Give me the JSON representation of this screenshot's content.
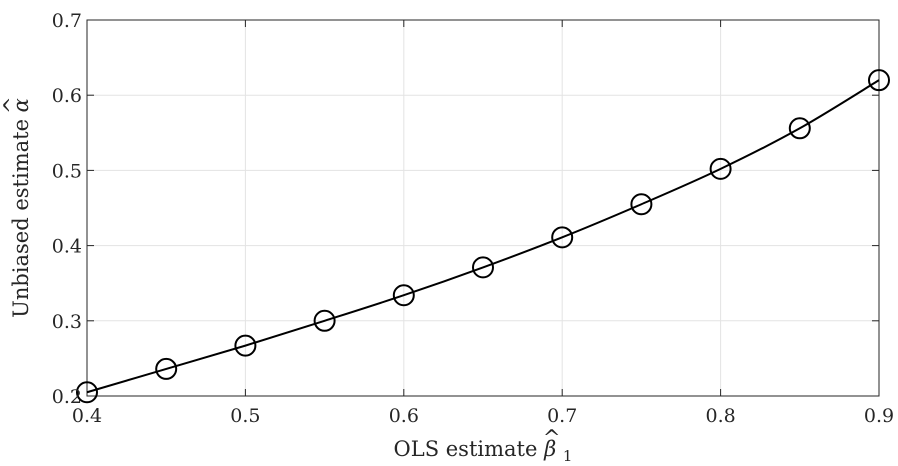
{
  "chart_data": {
    "type": "line",
    "xlabel_text": "OLS estimate ",
    "xlabel_symbol": "β",
    "xlabel_accent": "^",
    "xlabel_subscript": "1",
    "ylabel_text": "Unbiased estimate ",
    "ylabel_symbol": "α",
    "ylabel_accent": "^",
    "xlim": [
      0.4,
      0.9
    ],
    "ylim": [
      0.2,
      0.7
    ],
    "xticks": [
      0.4,
      0.5,
      0.6,
      0.7,
      0.8,
      0.9
    ],
    "yticks": [
      0.2,
      0.3,
      0.4,
      0.5,
      0.6,
      0.7
    ],
    "xtick_labels": [
      "0.4",
      "0.5",
      "0.6",
      "0.7",
      "0.8",
      "0.9"
    ],
    "ytick_labels": [
      "0.2",
      "0.3",
      "0.4",
      "0.5",
      "0.6",
      "0.7"
    ],
    "grid": true,
    "series": [
      {
        "x": [
          0.4,
          0.45,
          0.5,
          0.55,
          0.6,
          0.65,
          0.7,
          0.75,
          0.8,
          0.85,
          0.9
        ],
        "y": [
          0.205,
          0.236,
          0.267,
          0.3,
          0.334,
          0.371,
          0.411,
          0.455,
          0.502,
          0.556,
          0.62
        ],
        "marker": "circle",
        "color": "#000000"
      }
    ]
  }
}
